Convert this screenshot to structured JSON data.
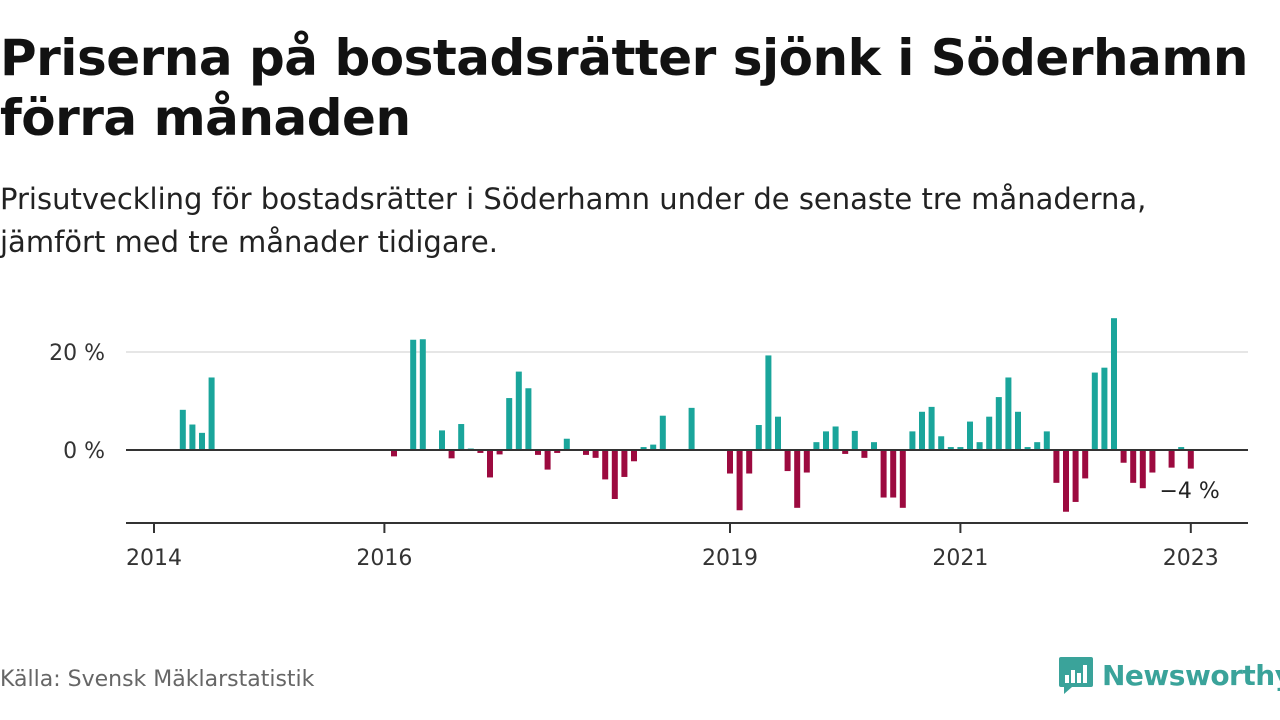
{
  "header": {
    "title": "Priserna på bostadsrätter sjönk i Söderhamn förra månaden",
    "subtitle": "Prisutveckling för bostadsrätter i Söderhamn under de senaste tre månaderna, jämfört med tre månader tidigare."
  },
  "footer": {
    "source": "Källa: Svensk Mäklarstatistik",
    "brand": "Newsworthy"
  },
  "colors": {
    "positive": "#1aa59b",
    "negative": "#9c0a3f",
    "brand": "#3aa39a"
  },
  "chart_data": {
    "type": "bar",
    "x_labels": [
      "2014",
      "2016",
      "2019",
      "2021",
      "2023"
    ],
    "x_label_dates": [
      "2014-01",
      "2016-01",
      "2019-01",
      "2021-01",
      "2023-01"
    ],
    "y_ticks": [
      {
        "value": 20,
        "label": "20 %"
      },
      {
        "value": 0,
        "label": "0 %"
      }
    ],
    "ylim": [
      -15,
      28
    ],
    "last_value_label": "−4 %",
    "series": [
      {
        "values": [
          [
            "2014-04",
            8.2
          ],
          [
            "2014-05",
            5.2
          ],
          [
            "2014-06",
            3.5
          ],
          [
            "2014-07",
            14.8
          ],
          [
            "2016-02",
            -1.3
          ],
          [
            "2016-04",
            22.5
          ],
          [
            "2016-05",
            22.6
          ],
          [
            "2016-07",
            4.0
          ],
          [
            "2016-08",
            -1.7
          ],
          [
            "2016-09",
            5.3
          ],
          [
            "2016-10",
            0.3
          ],
          [
            "2016-11",
            -0.6
          ],
          [
            "2016-12",
            -5.6
          ],
          [
            "2017-01",
            -0.9
          ],
          [
            "2017-02",
            10.6
          ],
          [
            "2017-03",
            16.0
          ],
          [
            "2017-04",
            12.6
          ],
          [
            "2017-05",
            -1.0
          ],
          [
            "2017-06",
            -4.0
          ],
          [
            "2017-07",
            -0.6
          ],
          [
            "2017-08",
            2.3
          ],
          [
            "2017-10",
            -1.0
          ],
          [
            "2017-11",
            -1.6
          ],
          [
            "2017-12",
            -6.0
          ],
          [
            "2018-01",
            -10.0
          ],
          [
            "2018-02",
            -5.5
          ],
          [
            "2018-03",
            -2.3
          ],
          [
            "2018-04",
            0.6
          ],
          [
            "2018-05",
            1.1
          ],
          [
            "2018-06",
            7.0
          ],
          [
            "2018-09",
            8.6
          ],
          [
            "2019-01",
            -4.8
          ],
          [
            "2019-02",
            -12.3
          ],
          [
            "2019-03",
            -4.8
          ],
          [
            "2019-04",
            5.1
          ],
          [
            "2019-05",
            19.3
          ],
          [
            "2019-06",
            6.8
          ],
          [
            "2019-07",
            -4.3
          ],
          [
            "2019-08",
            -11.8
          ],
          [
            "2019-09",
            -4.6
          ],
          [
            "2019-10",
            1.6
          ],
          [
            "2019-11",
            3.8
          ],
          [
            "2019-12",
            4.8
          ],
          [
            "2020-01",
            -0.8
          ],
          [
            "2020-02",
            3.9
          ],
          [
            "2020-03",
            -1.6
          ],
          [
            "2020-04",
            1.6
          ],
          [
            "2020-05",
            -9.7
          ],
          [
            "2020-06",
            -9.7
          ],
          [
            "2020-07",
            -11.8
          ],
          [
            "2020-08",
            3.8
          ],
          [
            "2020-09",
            7.8
          ],
          [
            "2020-10",
            8.8
          ],
          [
            "2020-11",
            2.8
          ],
          [
            "2020-12",
            0.6
          ],
          [
            "2021-01",
            0.6
          ],
          [
            "2021-02",
            5.8
          ],
          [
            "2021-03",
            1.6
          ],
          [
            "2021-04",
            6.8
          ],
          [
            "2021-05",
            10.8
          ],
          [
            "2021-06",
            14.8
          ],
          [
            "2021-07",
            7.8
          ],
          [
            "2021-08",
            0.6
          ],
          [
            "2021-09",
            1.6
          ],
          [
            "2021-10",
            3.8
          ],
          [
            "2021-11",
            -6.7
          ],
          [
            "2021-12",
            -12.6
          ],
          [
            "2022-01",
            -10.6
          ],
          [
            "2022-02",
            -5.8
          ],
          [
            "2022-03",
            15.8
          ],
          [
            "2022-04",
            16.8
          ],
          [
            "2022-05",
            26.9
          ],
          [
            "2022-06",
            -2.6
          ],
          [
            "2022-07",
            -6.7
          ],
          [
            "2022-08",
            -7.8
          ],
          [
            "2022-09",
            -4.6
          ],
          [
            "2022-11",
            -3.6
          ],
          [
            "2022-12",
            0.6
          ],
          [
            "2023-01",
            -3.8
          ]
        ]
      }
    ]
  }
}
